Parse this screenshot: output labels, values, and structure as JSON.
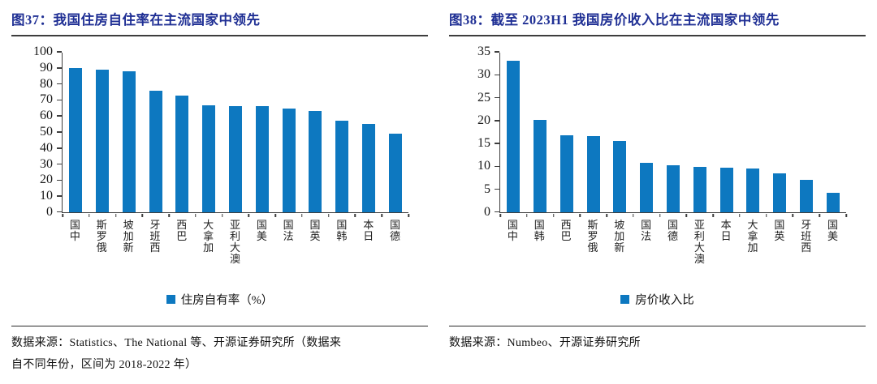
{
  "colors": {
    "bar": "#0d78c0",
    "title_text": "#1f2f94",
    "axis": "#3d3d3d",
    "body_text": "#111111"
  },
  "charts": [
    {
      "chart_data": {
        "type": "bar",
        "title": "图37：我国住房自住率在主流国家中领先",
        "legend": "住房自有率（%）",
        "legend_position": "bottom",
        "categories": [
          "中国",
          "俄罗斯",
          "新加坡",
          "西班牙",
          "巴西",
          "加拿大",
          "澳大利亚",
          "美国",
          "法国",
          "英国",
          "韩国",
          "日本",
          "德国"
        ],
        "values": [
          90,
          89,
          88,
          76,
          72.5,
          66.5,
          66.3,
          66,
          64.5,
          63,
          57,
          55,
          49
        ],
        "xlabel": "",
        "ylabel": "",
        "ylim": [
          0,
          100
        ],
        "yticks": [
          0,
          10,
          20,
          30,
          40,
          50,
          60,
          70,
          80,
          90,
          100
        ],
        "grid": false,
        "bar_color": "#0d78c0"
      },
      "source_lines": [
        "数据来源：Statistics、The National 等、开源证券研究所（数据来",
        "自不同年份，区间为 2018-2022 年）"
      ]
    },
    {
      "chart_data": {
        "type": "bar",
        "title": "图38：截至 2023H1 我国房价收入比在主流国家中领先",
        "legend": "房价收入比",
        "legend_position": "bottom",
        "categories": [
          "中国",
          "韩国",
          "巴西",
          "俄罗斯",
          "新加坡",
          "法国",
          "德国",
          "澳大利亚",
          "日本",
          "加拿大",
          "英国",
          "西班牙",
          "美国"
        ],
        "values": [
          33,
          20.2,
          16.8,
          16.7,
          15.6,
          10.8,
          10.2,
          9.9,
          9.8,
          9.6,
          8.4,
          7.1,
          4.2
        ],
        "xlabel": "",
        "ylabel": "",
        "ylim": [
          0,
          35
        ],
        "yticks": [
          0,
          5,
          10,
          15,
          20,
          25,
          30,
          35
        ],
        "grid": false,
        "bar_color": "#0d78c0"
      },
      "source_lines": [
        "数据来源：Numbeo、开源证券研究所"
      ]
    }
  ]
}
